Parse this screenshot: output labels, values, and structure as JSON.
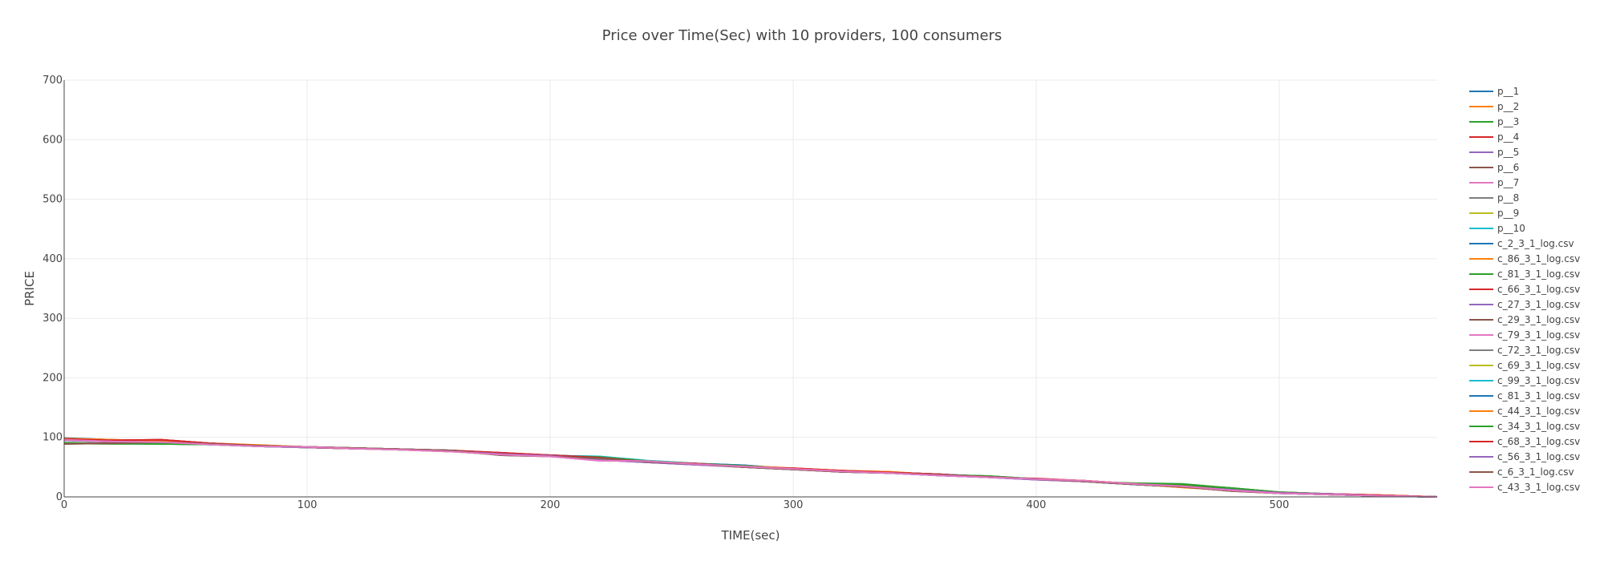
{
  "chart_data": {
    "type": "line",
    "title": "Price over Time(Sec) with 10 providers, 100 consumers",
    "xlabel": "TIME(sec)",
    "ylabel": "PRICE",
    "xlim": [
      0,
      565
    ],
    "ylim": [
      0,
      700
    ],
    "xticks": [
      0,
      100,
      200,
      300,
      400,
      500
    ],
    "yticks": [
      0,
      100,
      200,
      300,
      400,
      500,
      600,
      700
    ],
    "grid": true,
    "legend_position": "right",
    "x": [
      0,
      20,
      40,
      60,
      80,
      100,
      120,
      140,
      160,
      180,
      200,
      220,
      240,
      260,
      280,
      300,
      320,
      340,
      360,
      380,
      400,
      420,
      440,
      460,
      480,
      500,
      520,
      540,
      565
    ],
    "series": [
      {
        "name": "p__1",
        "color": "#1f77b4",
        "values": [
          99,
          96,
          93,
          89,
          86,
          83,
          81,
          80,
          78,
          72,
          70,
          67,
          59,
          56,
          53,
          47,
          43,
          41,
          38,
          34,
          30,
          26,
          21,
          17,
          12,
          6,
          4,
          2,
          0
        ]
      },
      {
        "name": "p__2",
        "color": "#ff7f0e",
        "values": [
          98,
          96,
          94,
          90,
          87,
          84,
          82,
          80,
          77,
          73,
          69,
          66,
          60,
          55,
          52,
          48,
          44,
          42,
          37,
          33,
          30,
          27,
          22,
          16,
          11,
          7,
          4,
          3,
          0
        ]
      },
      {
        "name": "p__3",
        "color": "#2ca02c",
        "values": [
          90,
          90,
          89,
          88,
          86,
          84,
          82,
          80,
          77,
          71,
          69,
          67,
          60,
          56,
          52,
          46,
          43,
          40,
          37,
          35,
          30,
          26,
          22,
          20,
          15,
          8,
          5,
          2,
          0
        ]
      },
      {
        "name": "p__4",
        "color": "#d62728",
        "values": [
          97,
          95,
          96,
          90,
          86,
          83,
          81,
          80,
          78,
          74,
          70,
          66,
          59,
          56,
          50,
          48,
          44,
          41,
          38,
          33,
          30,
          27,
          22,
          18,
          11,
          7,
          5,
          3,
          0
        ]
      },
      {
        "name": "p__5",
        "color": "#9467bd",
        "values": [
          95,
          93,
          92,
          89,
          85,
          83,
          82,
          80,
          77,
          72,
          69,
          62,
          58,
          54,
          51,
          47,
          42,
          40,
          36,
          33,
          29,
          26,
          22,
          17,
          12,
          7,
          5,
          2,
          0
        ]
      },
      {
        "name": "p__6",
        "color": "#8c564b",
        "values": [
          89,
          90,
          92,
          89,
          86,
          84,
          82,
          80,
          78,
          70,
          68,
          65,
          59,
          55,
          50,
          46,
          42,
          40,
          37,
          34,
          30,
          26,
          21,
          17,
          10,
          6,
          4,
          2,
          0
        ]
      },
      {
        "name": "p__7",
        "color": "#e377c2",
        "values": [
          96,
          93,
          92,
          88,
          85,
          84,
          81,
          79,
          76,
          71,
          68,
          61,
          60,
          55,
          51,
          47,
          43,
          40,
          36,
          33,
          30,
          27,
          22,
          18,
          11,
          6,
          4,
          2,
          0
        ]
      },
      {
        "name": "p__8",
        "color": "#7f7f7f",
        "values": [
          97,
          94,
          92,
          89,
          85,
          83,
          81,
          79,
          77,
          72,
          69,
          66,
          59,
          55,
          51,
          47,
          43,
          40,
          37,
          34,
          30,
          26,
          22,
          17,
          11,
          7,
          4,
          2,
          0
        ]
      },
      {
        "name": "p__9",
        "color": "#bcbd22",
        "values": [
          98,
          95,
          92,
          88,
          85,
          83,
          81,
          79,
          76,
          71,
          68,
          65,
          58,
          55,
          52,
          47,
          43,
          40,
          37,
          33,
          30,
          27,
          22,
          17,
          11,
          7,
          4,
          2,
          0
        ]
      },
      {
        "name": "p__10",
        "color": "#17becf",
        "values": [
          97,
          94,
          91,
          88,
          85,
          83,
          82,
          80,
          78,
          72,
          69,
          68,
          61,
          56,
          52,
          47,
          43,
          40,
          37,
          34,
          30,
          26,
          22,
          17,
          11,
          7,
          4,
          2,
          0
        ]
      },
      {
        "name": "c_2_3_1_log.csv",
        "color": "#1f77b4",
        "values": [
          97,
          94,
          91,
          88,
          85,
          83,
          81,
          79,
          77,
          72,
          69,
          65,
          58,
          55,
          50,
          46,
          43,
          40,
          36,
          33,
          30,
          26,
          21,
          17,
          11,
          6,
          4,
          2,
          0
        ]
      },
      {
        "name": "c_86_3_1_log.csv",
        "color": "#ff7f0e",
        "values": [
          98,
          95,
          92,
          89,
          86,
          84,
          81,
          80,
          77,
          72,
          69,
          66,
          59,
          56,
          51,
          47,
          43,
          41,
          37,
          34,
          30,
          27,
          22,
          17,
          12,
          7,
          5,
          3,
          0
        ]
      },
      {
        "name": "c_81_3_1_log.csv",
        "color": "#2ca02c",
        "values": [
          91,
          90,
          89,
          88,
          86,
          84,
          82,
          80,
          77,
          70,
          69,
          66,
          59,
          55,
          51,
          47,
          43,
          40,
          37,
          35,
          30,
          26,
          23,
          22,
          15,
          8,
          5,
          2,
          0
        ]
      },
      {
        "name": "c_66_3_1_log.csv",
        "color": "#d62728",
        "values": [
          96,
          95,
          96,
          90,
          86,
          83,
          81,
          80,
          77,
          74,
          70,
          66,
          59,
          55,
          50,
          47,
          44,
          41,
          38,
          33,
          31,
          27,
          22,
          18,
          12,
          7,
          5,
          3,
          0
        ]
      },
      {
        "name": "c_27_3_1_log.csv",
        "color": "#9467bd",
        "values": [
          95,
          93,
          92,
          89,
          85,
          83,
          82,
          80,
          77,
          72,
          69,
          62,
          58,
          54,
          50,
          47,
          42,
          40,
          36,
          33,
          29,
          26,
          22,
          17,
          12,
          7,
          5,
          2,
          0
        ]
      },
      {
        "name": "c_29_3_1_log.csv",
        "color": "#8c564b",
        "values": [
          89,
          91,
          92,
          89,
          86,
          84,
          82,
          80,
          78,
          71,
          68,
          65,
          59,
          55,
          50,
          46,
          42,
          40,
          37,
          34,
          30,
          26,
          21,
          17,
          10,
          6,
          4,
          2,
          0
        ]
      },
      {
        "name": "c_79_3_1_log.csv",
        "color": "#e377c2",
        "values": [
          96,
          93,
          92,
          88,
          86,
          84,
          81,
          79,
          76,
          71,
          68,
          61,
          60,
          55,
          51,
          47,
          43,
          40,
          36,
          33,
          30,
          27,
          22,
          18,
          11,
          6,
          4,
          2,
          0
        ]
      },
      {
        "name": "c_72_3_1_log.csv",
        "color": "#7f7f7f",
        "values": [
          97,
          94,
          92,
          89,
          85,
          83,
          81,
          79,
          77,
          72,
          69,
          66,
          59,
          55,
          51,
          47,
          43,
          40,
          37,
          34,
          30,
          26,
          22,
          17,
          11,
          7,
          4,
          2,
          0
        ]
      },
      {
        "name": "c_69_3_1_log.csv",
        "color": "#bcbd22",
        "values": [
          98,
          95,
          92,
          88,
          85,
          83,
          81,
          79,
          76,
          71,
          68,
          65,
          58,
          55,
          52,
          47,
          43,
          40,
          37,
          33,
          30,
          27,
          22,
          17,
          11,
          7,
          4,
          2,
          0
        ]
      },
      {
        "name": "c_99_3_1_log.csv",
        "color": "#17becf",
        "values": [
          97,
          94,
          91,
          88,
          85,
          83,
          82,
          80,
          78,
          72,
          69,
          68,
          61,
          56,
          52,
          47,
          43,
          40,
          37,
          34,
          30,
          26,
          22,
          17,
          11,
          7,
          4,
          2,
          0
        ]
      },
      {
        "name": "c_81_3_1_log.csv",
        "color": "#1f77b4",
        "values": [
          98,
          95,
          93,
          89,
          86,
          83,
          81,
          80,
          78,
          72,
          70,
          67,
          59,
          56,
          53,
          47,
          43,
          41,
          38,
          34,
          30,
          26,
          21,
          17,
          12,
          6,
          4,
          2,
          0
        ]
      },
      {
        "name": "c_44_3_1_log.csv",
        "color": "#ff7f0e",
        "values": [
          98,
          96,
          94,
          90,
          87,
          84,
          82,
          80,
          77,
          73,
          69,
          66,
          60,
          55,
          52,
          48,
          44,
          42,
          37,
          33,
          30,
          27,
          22,
          16,
          11,
          7,
          4,
          3,
          0
        ]
      },
      {
        "name": "c_34_3_1_log.csv",
        "color": "#2ca02c",
        "values": [
          90,
          89,
          89,
          88,
          86,
          84,
          82,
          80,
          77,
          71,
          69,
          67,
          60,
          56,
          52,
          46,
          43,
          40,
          37,
          35,
          30,
          26,
          22,
          21,
          15,
          8,
          5,
          2,
          0
        ]
      },
      {
        "name": "c_68_3_1_log.csv",
        "color": "#d62728",
        "values": [
          97,
          95,
          96,
          90,
          86,
          83,
          81,
          80,
          78,
          74,
          70,
          66,
          59,
          56,
          50,
          48,
          44,
          41,
          38,
          33,
          30,
          27,
          22,
          18,
          11,
          7,
          5,
          3,
          0
        ]
      },
      {
        "name": "c_56_3_1_log.csv",
        "color": "#9467bd",
        "values": [
          95,
          93,
          92,
          89,
          85,
          83,
          82,
          80,
          77,
          72,
          69,
          62,
          58,
          54,
          51,
          47,
          42,
          40,
          36,
          33,
          29,
          26,
          22,
          17,
          12,
          7,
          5,
          2,
          0
        ]
      },
      {
        "name": "c_6_3_1_log.csv",
        "color": "#8c564b",
        "values": [
          89,
          90,
          92,
          89,
          86,
          84,
          82,
          80,
          78,
          70,
          68,
          65,
          59,
          55,
          50,
          46,
          42,
          40,
          37,
          34,
          30,
          26,
          21,
          17,
          10,
          6,
          4,
          2,
          0
        ]
      },
      {
        "name": "c_43_3_1_log.csv",
        "color": "#e377c2",
        "values": [
          96,
          93,
          92,
          88,
          85,
          84,
          81,
          79,
          76,
          71,
          68,
          61,
          60,
          55,
          51,
          47,
          43,
          40,
          36,
          33,
          30,
          27,
          22,
          18,
          11,
          6,
          4,
          2,
          0
        ]
      }
    ]
  }
}
